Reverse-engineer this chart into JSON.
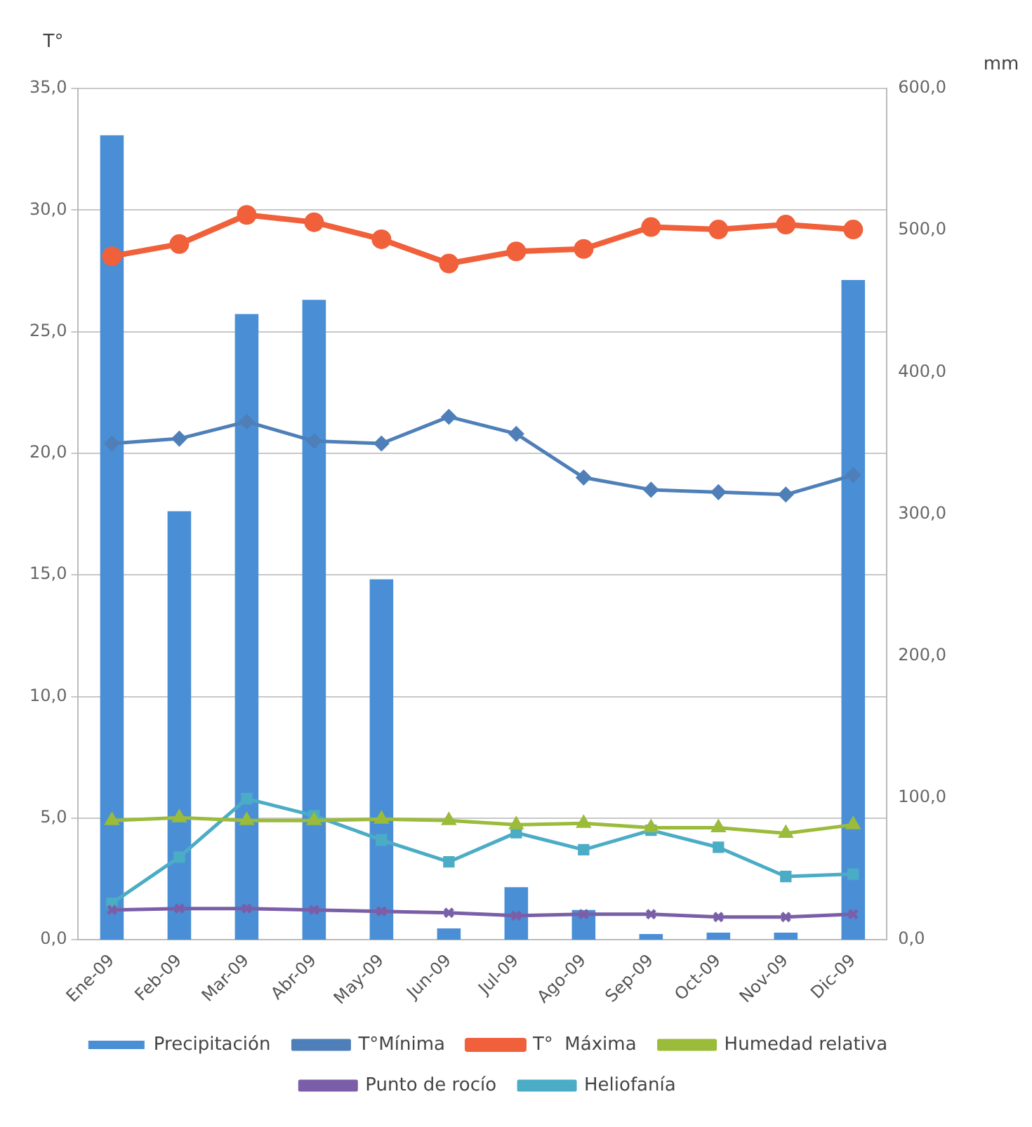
{
  "chart_data": {
    "type": "line",
    "ylabel": "T°",
    "y2label": "mm",
    "categories": [
      "Ene-09",
      "Feb-09",
      "Mar-09",
      "Abr-09",
      "May-09",
      "Jun-09",
      "Jul-09",
      "Ago-09",
      "Sep-09",
      "Oct-09",
      "Nov-09",
      "Dic-09"
    ],
    "ylim": [
      0,
      35
    ],
    "yticks": [
      {
        "value": 0,
        "label": "0,0"
      },
      {
        "value": 5,
        "label": "5,0"
      },
      {
        "value": 10,
        "label": "10,0"
      },
      {
        "value": 15,
        "label": "15,0"
      },
      {
        "value": 20,
        "label": "20,0"
      },
      {
        "value": 25,
        "label": "25,0"
      },
      {
        "value": 30,
        "label": "30,0"
      },
      {
        "value": 35,
        "label": "35,0"
      }
    ],
    "y2lim": [
      0,
      600
    ],
    "y2ticks": [
      {
        "value": 0,
        "label": "0,0"
      },
      {
        "value": 100,
        "label": "100,0"
      },
      {
        "value": 200,
        "label": "200,0"
      },
      {
        "value": 300,
        "label": "300,0"
      },
      {
        "value": 400,
        "label": "400,0"
      },
      {
        "value": 500,
        "label": "500,0"
      },
      {
        "value": 600,
        "label": "600,0"
      }
    ],
    "grid": "y",
    "legend": "bottom",
    "line_style": "solid",
    "series": [
      {
        "name": "Precipitación",
        "type": "bar",
        "axis": "y2",
        "color": "#4a8fd6",
        "values": [
          567,
          302,
          441,
          451,
          254,
          8,
          37,
          21,
          4,
          5,
          5,
          465
        ]
      },
      {
        "name": "T°Mínima",
        "color": "#4f7fb8",
        "marker": "diamond",
        "values": [
          20.4,
          20.6,
          21.3,
          20.5,
          20.4,
          21.5,
          20.8,
          19.0,
          18.5,
          18.4,
          18.3,
          19.1
        ]
      },
      {
        "name": "T°  Máxima",
        "color": "#f0603a",
        "marker": "circle",
        "values": [
          28.1,
          28.6,
          29.8,
          29.5,
          28.8,
          27.8,
          28.3,
          28.4,
          29.3,
          29.2,
          29.4,
          29.2
        ]
      },
      {
        "name": "Humedad relativa",
        "axis": "y2",
        "color": "#9bbb3a",
        "marker": "triangle",
        "values": [
          84,
          86,
          84,
          84,
          85,
          84,
          81,
          82,
          79,
          79,
          75,
          81
        ]
      },
      {
        "name": "Punto de rocío",
        "axis": "y2",
        "color": "#7a5fa8",
        "marker": "cross",
        "values": [
          21,
          22,
          22,
          21,
          20,
          19,
          17,
          18,
          18,
          16,
          16,
          18
        ]
      },
      {
        "name": "Heliofanía",
        "color": "#4bacc6",
        "marker": "square",
        "values": [
          1.5,
          3.4,
          5.8,
          5.1,
          4.1,
          3.2,
          4.4,
          3.7,
          4.5,
          3.8,
          2.6,
          2.7
        ]
      }
    ]
  }
}
